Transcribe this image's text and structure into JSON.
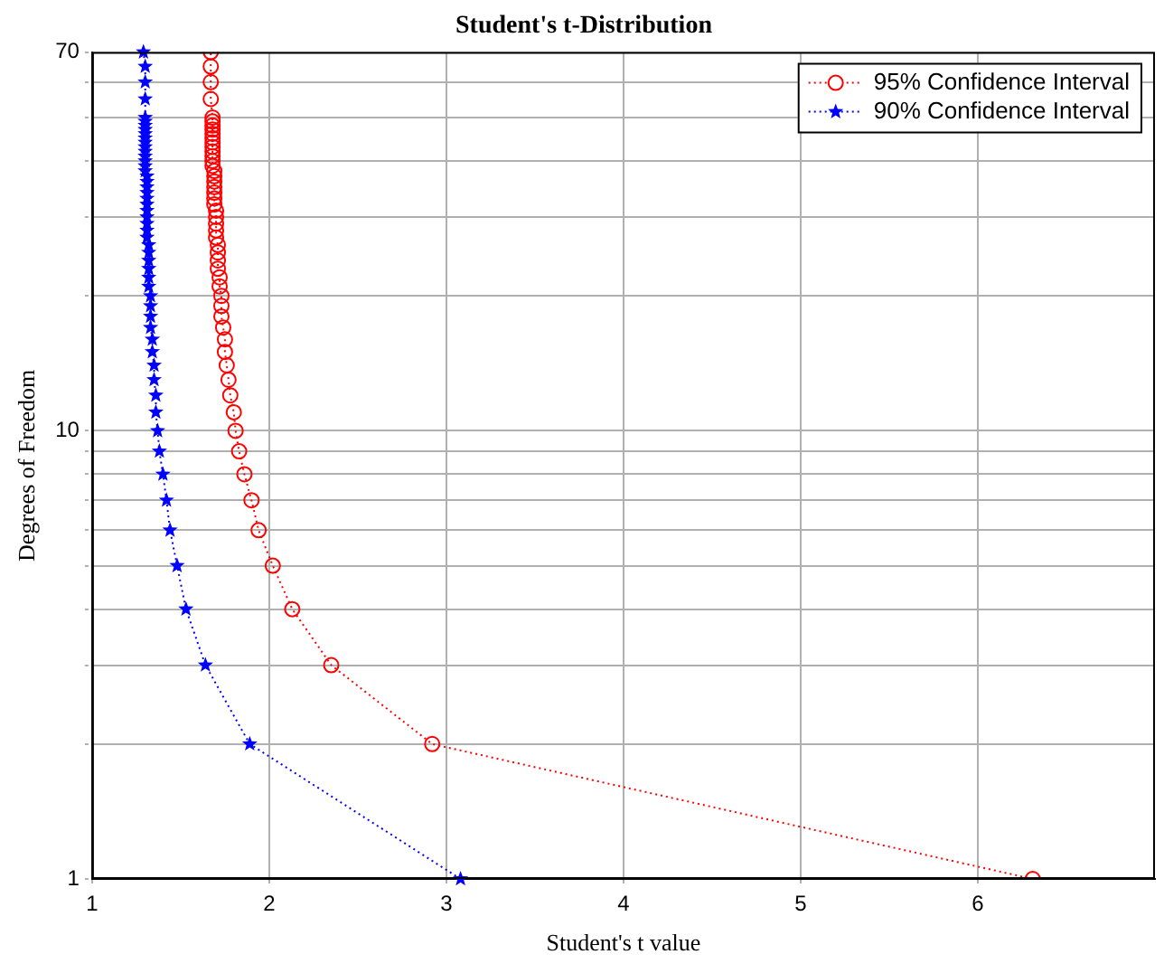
{
  "chart_data": {
    "type": "line",
    "title": "Student's t-Distribution",
    "xlabel": "Student's t value",
    "ylabel": "Degrees of Freedom",
    "log": "y",
    "grid": true,
    "legend": "top right",
    "line_style": "dotted",
    "xlim": [
      1,
      7
    ],
    "xticks": [
      1,
      2,
      3,
      4,
      5,
      6
    ],
    "ylim": [
      1,
      70
    ],
    "yticks": [
      1,
      {
        "value": 2,
        "label": null
      },
      {
        "value": 3,
        "label": null
      },
      {
        "value": 4,
        "label": null
      },
      {
        "value": 5,
        "label": null
      },
      {
        "value": 6,
        "label": null
      },
      {
        "value": 7,
        "label": null
      },
      {
        "value": 8,
        "label": null
      },
      {
        "value": 9,
        "label": null
      },
      10,
      {
        "value": 20,
        "label": null
      },
      {
        "value": 30,
        "label": null
      },
      {
        "value": 40,
        "label": null
      },
      {
        "value": 50,
        "label": null
      },
      {
        "value": 60,
        "label": null
      },
      70
    ],
    "series": [
      {
        "name": "95% Confidence Interval",
        "color": "#ff0000",
        "marker": "circle",
        "x": [
          6.31,
          2.92,
          2.35,
          2.13,
          2.02,
          1.94,
          1.9,
          1.86,
          1.83,
          1.81,
          1.8,
          1.78,
          1.77,
          1.76,
          1.75,
          1.75,
          1.74,
          1.73,
          1.73,
          1.73,
          1.72,
          1.72,
          1.71,
          1.71,
          1.71,
          1.71,
          1.7,
          1.7,
          1.7,
          1.7,
          1.7,
          1.69,
          1.69,
          1.69,
          1.69,
          1.69,
          1.69,
          1.69,
          1.68,
          1.68,
          1.68,
          1.68,
          1.68,
          1.68,
          1.68,
          1.68,
          1.68,
          1.68,
          1.68,
          1.68,
          1.67,
          1.67,
          1.67,
          1.67
        ],
        "values": [
          1,
          2,
          3,
          4,
          5,
          6,
          7,
          8,
          9,
          10,
          11,
          12,
          13,
          14,
          15,
          16,
          17,
          18,
          19,
          20,
          21,
          22,
          23,
          24,
          25,
          26,
          27,
          28,
          29,
          30,
          31,
          32,
          33,
          34,
          35,
          36,
          37,
          38,
          39,
          40,
          41,
          42,
          43,
          44,
          45,
          46,
          47,
          48,
          49,
          50,
          55,
          60,
          65,
          70
        ]
      },
      {
        "name": "90% Confidence Interval",
        "color": "#0000ff",
        "marker": "star",
        "x": [
          3.08,
          1.89,
          1.64,
          1.53,
          1.48,
          1.44,
          1.42,
          1.4,
          1.38,
          1.37,
          1.36,
          1.36,
          1.35,
          1.35,
          1.34,
          1.34,
          1.33,
          1.33,
          1.33,
          1.33,
          1.32,
          1.32,
          1.32,
          1.32,
          1.32,
          1.32,
          1.31,
          1.31,
          1.31,
          1.31,
          1.31,
          1.31,
          1.31,
          1.31,
          1.31,
          1.31,
          1.31,
          1.3,
          1.3,
          1.3,
          1.3,
          1.3,
          1.3,
          1.3,
          1.3,
          1.3,
          1.3,
          1.3,
          1.3,
          1.3,
          1.3,
          1.3,
          1.3,
          1.29
        ],
        "values": [
          1,
          2,
          3,
          4,
          5,
          6,
          7,
          8,
          9,
          10,
          11,
          12,
          13,
          14,
          15,
          16,
          17,
          18,
          19,
          20,
          21,
          22,
          23,
          24,
          25,
          26,
          27,
          28,
          29,
          30,
          31,
          32,
          33,
          34,
          35,
          36,
          37,
          38,
          39,
          40,
          41,
          42,
          43,
          44,
          45,
          46,
          47,
          48,
          49,
          50,
          55,
          60,
          65,
          70
        ]
      }
    ]
  }
}
